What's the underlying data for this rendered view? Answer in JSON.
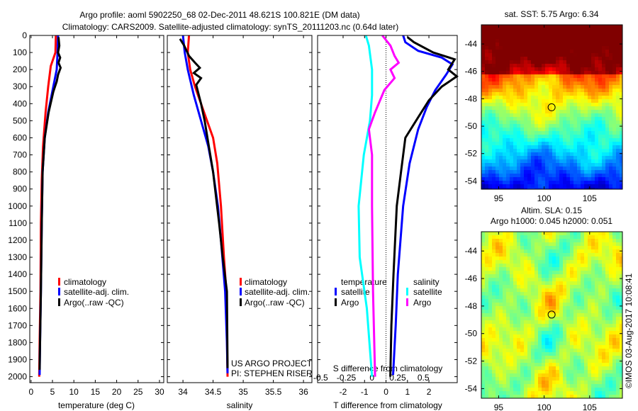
{
  "header": {
    "title": "Argo profile: aoml 5902250_68 02-Dec-2011 48.621S 100.821E (DM data)",
    "subtitle": "Climatology: CARS2009. Satellite-adjusted climatology: synTS_20111203.nc (0.64d later)"
  },
  "colors": {
    "climatology": "#ff0000",
    "satellite": "#0000ff",
    "argo": "#000000",
    "sal_satellite": "#00ffff",
    "sal_argo": "#ff00ff"
  },
  "chart_data": [
    {
      "type": "line",
      "xlabel": "temperature (deg C)",
      "ylabel": "",
      "xlim": [
        -0.3,
        31
      ],
      "ylim": [
        2035,
        0
      ],
      "xticks": [
        "0",
        "5",
        "10",
        "15",
        "20",
        "25",
        "30"
      ],
      "yticks": [
        "0",
        "100",
        "200",
        "300",
        "400",
        "500",
        "600",
        "700",
        "800",
        "900",
        "1000",
        "1100",
        "1200",
        "1300",
        "1400",
        "1500",
        "1600",
        "1700",
        "1800",
        "1900",
        "2000"
      ],
      "legend": [
        "climatology",
        "satellite-adj. clim.",
        "Argo(..raw -QC)"
      ],
      "series": [
        {
          "name": "climatology",
          "color": "#ff0000",
          "points": [
            [
              5.8,
              0
            ],
            [
              5.7,
              100
            ],
            [
              4.6,
              180
            ],
            [
              4.0,
              300
            ],
            [
              3.4,
              450
            ],
            [
              2.8,
              650
            ],
            [
              2.5,
              850
            ],
            [
              2.3,
              1100
            ],
            [
              2.2,
              1500
            ],
            [
              2.0,
              1800
            ],
            [
              1.9,
              2000
            ]
          ]
        },
        {
          "name": "satellite-adj. clim.",
          "color": "#0000ff",
          "points": [
            [
              6.3,
              0
            ],
            [
              6.2,
              100
            ],
            [
              6.0,
              200
            ],
            [
              5.2,
              300
            ],
            [
              4.0,
              450
            ],
            [
              3.2,
              600
            ],
            [
              2.7,
              800
            ],
            [
              2.5,
              1100
            ],
            [
              2.3,
              1500
            ],
            [
              2.1,
              1800
            ],
            [
              2.0,
              1990
            ]
          ]
        },
        {
          "name": "Argo(..raw -QC)",
          "color": "#000000",
          "points": [
            [
              6.4,
              10
            ],
            [
              6.6,
              60
            ],
            [
              6.3,
              100
            ],
            [
              6.8,
              130
            ],
            [
              6.4,
              160
            ],
            [
              6.9,
              190
            ],
            [
              6.3,
              230
            ],
            [
              6.0,
              270
            ],
            [
              5.2,
              330
            ],
            [
              4.1,
              450
            ],
            [
              3.2,
              600
            ],
            [
              2.7,
              800
            ],
            [
              2.5,
              1100
            ],
            [
              2.3,
              1500
            ],
            [
              2.1,
              1800
            ],
            [
              2.0,
              1960
            ]
          ]
        }
      ]
    },
    {
      "type": "line",
      "xlabel": "salinity",
      "xlim": [
        33.74,
        36.14
      ],
      "ylim": [
        2035,
        0
      ],
      "xticks": [
        "34",
        "34.5",
        "35",
        "35.5",
        "36"
      ],
      "legend": [
        "climatology",
        "satellite-adj. clim.",
        "Argo(..raw -QC)"
      ],
      "annotations": [
        "US ARGO PROJECT",
        "PI: STEPHEN RISER"
      ],
      "series": [
        {
          "name": "climatology",
          "color": "#ff0000",
          "points": [
            [
              34.1,
              0
            ],
            [
              34.08,
              100
            ],
            [
              34.12,
              200
            ],
            [
              34.2,
              300
            ],
            [
              34.35,
              450
            ],
            [
              34.5,
              600
            ],
            [
              34.57,
              750
            ],
            [
              34.63,
              1000
            ],
            [
              34.68,
              1300
            ],
            [
              34.72,
              1500
            ],
            [
              34.74,
              2000
            ]
          ]
        },
        {
          "name": "satellite-adj. clim.",
          "color": "#0000ff",
          "points": [
            [
              34.0,
              0
            ],
            [
              34.03,
              100
            ],
            [
              34.08,
              200
            ],
            [
              34.18,
              350
            ],
            [
              34.3,
              500
            ],
            [
              34.42,
              650
            ],
            [
              34.5,
              800
            ],
            [
              34.58,
              1000
            ],
            [
              34.63,
              1200
            ],
            [
              34.7,
              1500
            ],
            [
              34.73,
              1800
            ],
            [
              34.74,
              1980
            ]
          ]
        },
        {
          "name": "Argo(..raw -QC)",
          "color": "#000000",
          "points": [
            [
              33.95,
              20
            ],
            [
              34.02,
              60
            ],
            [
              34.1,
              120
            ],
            [
              34.2,
              160
            ],
            [
              34.28,
              190
            ],
            [
              34.18,
              220
            ],
            [
              34.3,
              250
            ],
            [
              34.22,
              290
            ],
            [
              34.3,
              400
            ],
            [
              34.36,
              500
            ],
            [
              34.43,
              650
            ],
            [
              34.5,
              800
            ],
            [
              34.6,
              1100
            ],
            [
              34.66,
              1300
            ],
            [
              34.73,
              1500
            ],
            [
              34.74,
              1950
            ]
          ]
        }
      ]
    },
    {
      "type": "line",
      "xlabel": "T difference from climatology",
      "x2label": "S difference from climatology",
      "xlim": [
        -3.19,
        3.32
      ],
      "x2lim": [
        -0.53,
        0.83
      ],
      "ylim": [
        2035,
        0
      ],
      "xticks": [
        "-2",
        "-1",
        "0",
        "1",
        "2"
      ],
      "x2ticks": [
        "-0.5",
        "-0.25",
        "0",
        "0.25",
        "0.5"
      ],
      "legend_temperature_title": "temperature",
      "legend_salinity_title": "salinity",
      "legend_temperature": [
        "satellite",
        "Argo"
      ],
      "legend_salinity": [
        "satellite",
        "Argo"
      ],
      "series": [
        {
          "name": "T satellite",
          "axis": "T",
          "color": "#0000ff",
          "points": [
            [
              0.8,
              0
            ],
            [
              0.9,
              40
            ],
            [
              1.5,
              90
            ],
            [
              2.6,
              130
            ],
            [
              3.1,
              170
            ],
            [
              2.8,
              230
            ],
            [
              2.3,
              320
            ],
            [
              1.9,
              420
            ],
            [
              1.5,
              550
            ],
            [
              1.1,
              750
            ],
            [
              0.8,
              1000
            ],
            [
              0.55,
              1400
            ],
            [
              0.45,
              1700
            ],
            [
              0.33,
              1990
            ]
          ]
        },
        {
          "name": "T Argo",
          "axis": "T",
          "color": "#000000",
          "points": [
            [
              1.0,
              10
            ],
            [
              1.3,
              40
            ],
            [
              2.2,
              100
            ],
            [
              3.2,
              140
            ],
            [
              2.9,
              200
            ],
            [
              3.3,
              240
            ],
            [
              2.6,
              300
            ],
            [
              2.0,
              380
            ],
            [
              1.5,
              480
            ],
            [
              0.9,
              600
            ],
            [
              0.7,
              800
            ],
            [
              0.5,
              1000
            ],
            [
              0.35,
              1400
            ],
            [
              0.25,
              1700
            ],
            [
              0.2,
              2000
            ]
          ]
        },
        {
          "name": "S satellite",
          "axis": "S",
          "color": "#00ffff",
          "points": [
            [
              -0.06,
              0
            ],
            [
              -0.03,
              60
            ],
            [
              0.0,
              200
            ],
            [
              0.0,
              350
            ],
            [
              -0.02,
              500
            ],
            [
              -0.08,
              700
            ],
            [
              -0.13,
              1000
            ],
            [
              -0.12,
              1300
            ],
            [
              -0.05,
              1600
            ],
            [
              0.0,
              2000
            ]
          ]
        },
        {
          "name": "S Argo",
          "axis": "S",
          "color": "#ff00ff",
          "points": [
            [
              0.1,
              0
            ],
            [
              0.18,
              60
            ],
            [
              0.22,
              120
            ],
            [
              0.26,
              160
            ],
            [
              0.18,
              200
            ],
            [
              0.22,
              250
            ],
            [
              0.12,
              320
            ],
            [
              0.03,
              450
            ],
            [
              -0.03,
              550
            ],
            [
              0.0,
              700
            ],
            [
              0.0,
              1000
            ],
            [
              0.01,
              1500
            ],
            [
              0.03,
              2000
            ]
          ]
        }
      ]
    },
    {
      "type": "heatmap",
      "title": "sat. SST: 5.75 Argo: 6.34",
      "xlim": [
        93.1,
        108.6
      ],
      "ylim": [
        -54.6,
        -42.6
      ],
      "xticks": [
        "95",
        "100",
        "105"
      ],
      "yticks": [
        "-44",
        "-46",
        "-48",
        "-50",
        "-52",
        "-54"
      ],
      "marker": [
        100.821,
        -48.621
      ]
    },
    {
      "type": "heatmap",
      "title": "Altim. SLA: 0.15",
      "subtitle": "Argo h1000: 0.045 h2000: 0.051",
      "xlim": [
        93.1,
        108.6
      ],
      "ylim": [
        -54.7,
        -42.6
      ],
      "xticks": [
        "95",
        "100",
        "105"
      ],
      "yticks": [
        "-44",
        "-46",
        "-48",
        "-50",
        "-52",
        "-54"
      ],
      "marker": [
        100.821,
        -48.621
      ]
    }
  ],
  "credit": "©IMOS 03-Aug-2017 10:08:41"
}
